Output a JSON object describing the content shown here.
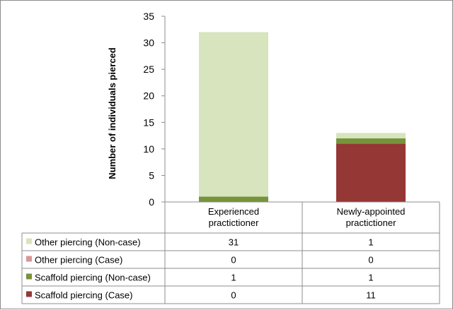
{
  "chart_data": {
    "type": "bar",
    "stacked": true,
    "categories": [
      "Experienced\npractictioner",
      "Newly-appointed\npractictioner"
    ],
    "ylabel": "Number of individuals  pierced",
    "ylim": [
      0,
      35
    ],
    "yticks": [
      0,
      5,
      10,
      15,
      20,
      25,
      30,
      35
    ],
    "grid": false,
    "legend": "data-table-left",
    "series": [
      {
        "name": "Scaffold piercing (Case)",
        "color": "#953735",
        "values": [
          0,
          11
        ]
      },
      {
        "name": "Scaffold piercing  (Non-case)",
        "color": "#77933c",
        "values": [
          1,
          1
        ]
      },
      {
        "name": "Other piercing  (Case)",
        "color": "#d99694",
        "values": [
          0,
          0
        ]
      },
      {
        "name": "Other piercing  (Non-case)",
        "color": "#d7e4bd",
        "values": [
          31,
          1
        ]
      }
    ],
    "table_rows_top_to_bottom": [
      "Other piercing  (Non-case)",
      "Other piercing  (Case)",
      "Scaffold piercing  (Non-case)",
      "Scaffold piercing (Case)"
    ]
  }
}
